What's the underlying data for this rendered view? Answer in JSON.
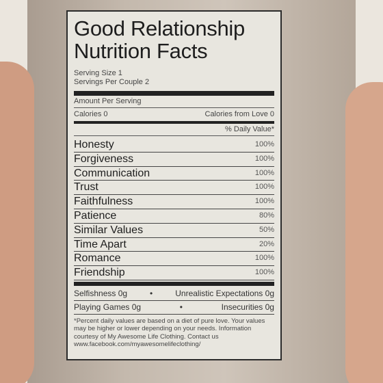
{
  "label": {
    "title": [
      "Good Relationship",
      "Nutrition Facts"
    ],
    "serving": [
      "Serving Size 1",
      "Servings Per Couple 2"
    ],
    "amount_per_serving": "Amount Per Serving",
    "calories": "Calories 0",
    "calories_from_love": "Calories from Love 0",
    "daily_value_header": "% Daily Value*",
    "nutrients": [
      {
        "name": "Honesty",
        "value": "100%"
      },
      {
        "name": "Forgiveness",
        "value": "100%"
      },
      {
        "name": "Communication",
        "value": "100%"
      },
      {
        "name": "Trust",
        "value": "100%"
      },
      {
        "name": "Faithfulness",
        "value": "100%"
      },
      {
        "name": "Patience",
        "value": "80%"
      },
      {
        "name": "Similar Values",
        "value": "50%"
      },
      {
        "name": "Time Apart",
        "value": "20%"
      },
      {
        "name": "Romance",
        "value": "100%"
      },
      {
        "name": "Friendship",
        "value": "100%"
      }
    ],
    "extras": [
      [
        "Selfishness 0g",
        "Unrealistic Expectations 0g"
      ],
      [
        "Playing Games 0g",
        "Insecurities 0g"
      ]
    ],
    "footnote": "*Percent daily values are based on a diet of pure love.  Your values may be higher or lower depending on your needs.  Information courtesy of My Awesome Life Clothing. Contact us www.facebook.com/myawesomelifeclothing/"
  }
}
